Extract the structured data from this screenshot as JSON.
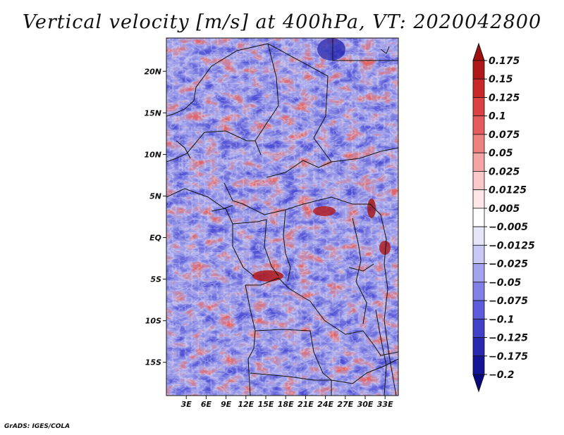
{
  "figure": {
    "title": "Vertical velocity [m/s] at 400hPa, VT: 2020042800",
    "credit": "GrADS: IGES/COLA",
    "map_region": {
      "lon_range_deg": [
        0,
        35
      ],
      "lat_range_deg": [
        -19,
        24
      ],
      "projection": "latlon"
    },
    "lat_ticks": [
      "20N",
      "15N",
      "10N",
      "5N",
      "EQ",
      "5S",
      "10S",
      "15S"
    ],
    "lon_ticks": [
      "3E",
      "6E",
      "9E",
      "12E",
      "15E",
      "18E",
      "21E",
      "24E",
      "27E",
      "30E",
      "33E"
    ]
  },
  "legend": {
    "labels": [
      "0.175",
      "0.15",
      "0.125",
      "0.1",
      "0.075",
      "0.05",
      "0.025",
      "0.0125",
      "0.005",
      "−0.005",
      "−0.0125",
      "−0.025",
      "−0.05",
      "−0.075",
      "−0.1",
      "−0.125",
      "−0.175",
      "−0.2"
    ],
    "colors": [
      "#a01010",
      "#b01818",
      "#c82828",
      "#dc4040",
      "#e65c5c",
      "#ee8080",
      "#f5a4a4",
      "#fbc8c8",
      "#fde6e6",
      "#ffffff",
      "#e6e6fa",
      "#c8c8f5",
      "#a4a4ee",
      "#8080e6",
      "#5c5cdc",
      "#4040c8",
      "#2828b0",
      "#141496",
      "#08087e"
    ]
  }
}
